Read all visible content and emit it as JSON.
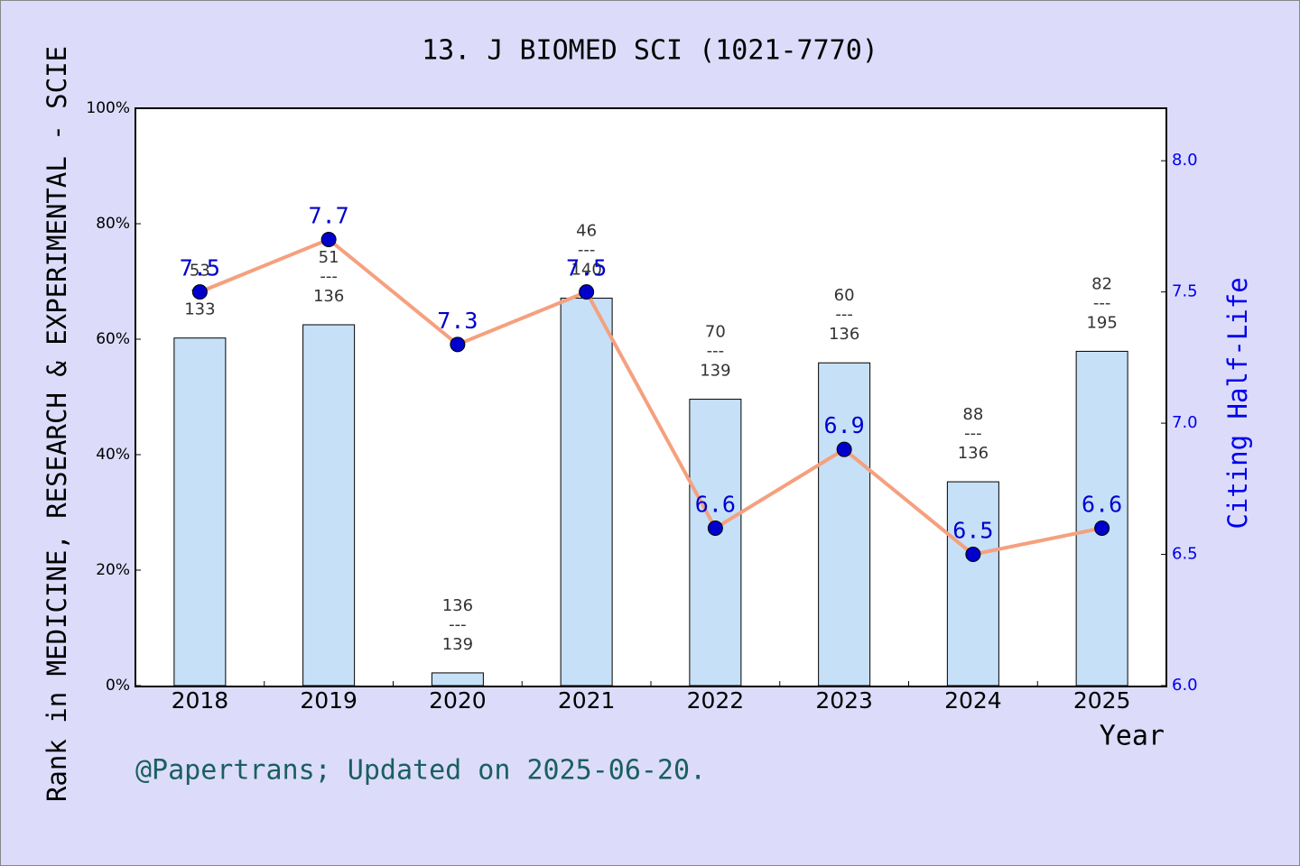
{
  "chart_data": {
    "type": "bar",
    "title": "13. J BIOMED SCI (1021-7770)",
    "y_label": "Rank in MEDICINE, RESEARCH & EXPERIMENTAL - SCIE",
    "y2_label": "Citing Half-Life",
    "x_label": "Year",
    "footnote": "@Papertrans; Updated on 2025-06-20.",
    "categories": [
      "2018",
      "2019",
      "2020",
      "2021",
      "2022",
      "2023",
      "2024",
      "2025"
    ],
    "rank_separator": "---",
    "series": [
      {
        "type": "bar",
        "color": "#c6e0f7",
        "values": [
          60.2,
          62.5,
          2.2,
          67.1,
          49.6,
          55.9,
          35.3,
          57.9
        ],
        "rank_labels": [
          "53",
          "51",
          "136",
          "46",
          "70",
          "60",
          "88",
          "82"
        ],
        "rank_totals": [
          "133",
          "136",
          "139",
          "140",
          "139",
          "136",
          "136",
          "195"
        ]
      },
      {
        "type": "line",
        "axis": "y2",
        "color": "#f5a07e",
        "marker_color": "#0000cc",
        "values": [
          7.5,
          7.7,
          7.3,
          7.5,
          6.6,
          6.9,
          6.5,
          6.6
        ]
      }
    ],
    "ylim": [
      0,
      100
    ],
    "yticks": [
      {
        "value": 0,
        "label": "0%"
      },
      {
        "value": 20,
        "label": "20%"
      },
      {
        "value": 40,
        "label": "40%"
      },
      {
        "value": 60,
        "label": "60%"
      },
      {
        "value": 80,
        "label": "80%"
      },
      {
        "value": 100,
        "label": "100%"
      }
    ],
    "y2lim": [
      6,
      8.2
    ],
    "y2ticks": [
      {
        "value": 6,
        "label": "6.0"
      },
      {
        "value": 6.5,
        "label": "6.5"
      },
      {
        "value": 7,
        "label": "7.0"
      },
      {
        "value": 7.5,
        "label": "7.5"
      },
      {
        "value": 8,
        "label": "8.0"
      }
    ]
  }
}
